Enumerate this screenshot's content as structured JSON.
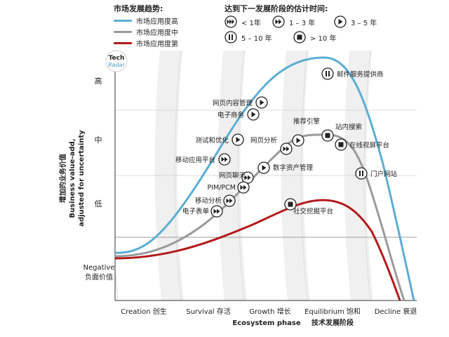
{
  "legend": {
    "trend_title": "市场发展趋势:",
    "trends": [
      {
        "label": "市场应用度高",
        "color": "#5aaed3"
      },
      {
        "label": "市场应用度中",
        "color": "#9a9a9a"
      },
      {
        "label": "市场应用度第",
        "color": "#b3191b"
      }
    ],
    "time_title": "达到下一发展阶段的估计时间:",
    "times": [
      {
        "icon": "triple-play-icon",
        "label": "< 1年"
      },
      {
        "icon": "double-play-icon",
        "label": "1 – 3 年"
      },
      {
        "icon": "play-icon",
        "label": "3 – 5 年"
      },
      {
        "icon": "pause-icon",
        "label": "5 – 10 年"
      },
      {
        "icon": "stop-icon",
        "label": "> 10 年"
      }
    ]
  },
  "badge": {
    "line1": "Tech",
    "line2": "Radar"
  },
  "y_axis": {
    "title_cn": "增加的业务价值",
    "title_en1": "Business value-add,",
    "title_en2": "adjusted for uncertainty",
    "levels": [
      "高",
      "中",
      "低"
    ],
    "negative_en": "Negative",
    "negative_cn": "负面价值"
  },
  "x_axis": {
    "phases": [
      "Creation 创生",
      "Survival 存活",
      "Growth 增长",
      "Equilibrium 饱和",
      "Decline 衰退"
    ],
    "title_en": "Ecosystem phase",
    "title_cn": "技术发展阶段"
  },
  "technologies": [
    {
      "label": "邮件服务提供商",
      "icon": "pause-icon",
      "curve": "high"
    },
    {
      "label": "网页内容管理",
      "icon": "play-icon",
      "curve": "high"
    },
    {
      "label": "电子商务",
      "icon": "play-icon",
      "curve": "high"
    },
    {
      "label": "测试和优化",
      "icon": "play-icon",
      "curve": "high"
    },
    {
      "label": "移动应用平台",
      "icon": "double-play-icon",
      "curve": "high"
    },
    {
      "label": "推荐引擎",
      "icon": "play-icon",
      "curve": "medium"
    },
    {
      "label": "站内搜索",
      "icon": "stop-icon",
      "curve": "medium"
    },
    {
      "label": "在线视屏平台",
      "icon": "stop-icon",
      "curve": "medium"
    },
    {
      "label": "门户网站",
      "icon": "pause-icon",
      "curve": "medium"
    },
    {
      "label": "网页分析",
      "icon": "double-play-icon",
      "curve": "medium"
    },
    {
      "label": "数字资产管理",
      "icon": "play-icon",
      "curve": "medium"
    },
    {
      "label": "网页聊天",
      "icon": "double-play-icon",
      "curve": "medium"
    },
    {
      "label": "PIM/PCM",
      "icon": "double-play-icon",
      "curve": "medium"
    },
    {
      "label": "移动分析",
      "icon": "double-play-icon",
      "curve": "medium"
    },
    {
      "label": "电子表单",
      "icon": "double-play-icon",
      "curve": "medium"
    },
    {
      "label": "社交挖掘平台",
      "icon": "stop-icon",
      "curve": "low"
    }
  ]
}
